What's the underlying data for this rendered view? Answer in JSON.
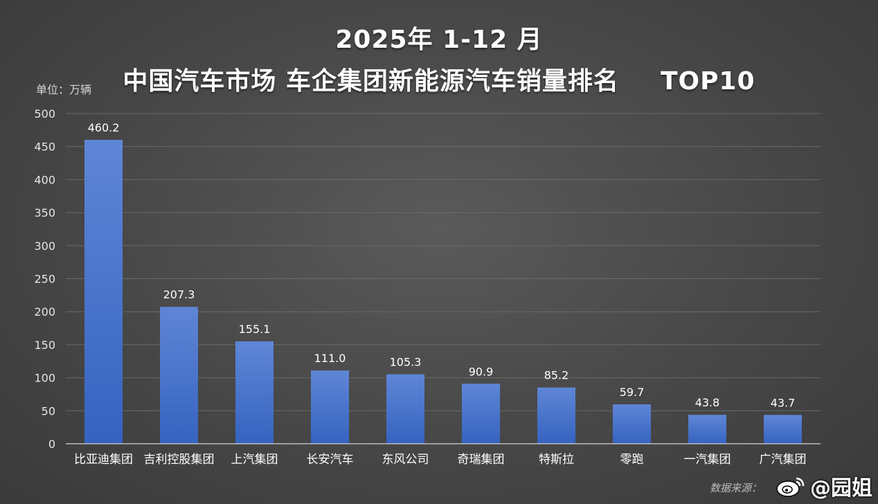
{
  "header": {
    "title_line1": "2025年 1-12 月",
    "title_line2_left": "中国汽车市场  车企集团新能源汽车销量排名",
    "title_line2_right": "TOP10",
    "unit_label": "单位：万辆"
  },
  "footer": {
    "source_label": "数据来源：",
    "watermark_text": "@园姐",
    "watermark_icon": "weibo-icon"
  },
  "chart_data": {
    "type": "bar",
    "categories": [
      "比亚迪集团",
      "吉利控股集团",
      "上汽集团",
      "长安汽车",
      "东风公司",
      "奇瑞集团",
      "特斯拉",
      "零跑",
      "一汽集团",
      "广汽集团"
    ],
    "values": [
      460.2,
      207.3,
      155.1,
      111.0,
      105.3,
      90.9,
      85.2,
      59.7,
      43.8,
      43.7
    ],
    "value_labels": [
      "460.2",
      "207.3",
      "155.1",
      "111.0",
      "105.3",
      "90.9",
      "85.2",
      "59.7",
      "43.8",
      "43.7"
    ],
    "yticks": [
      0,
      50,
      100,
      150,
      200,
      250,
      300,
      350,
      400,
      450,
      500
    ],
    "ylim": [
      0,
      500
    ],
    "grid": true,
    "bar_color": "#4a74c9"
  }
}
